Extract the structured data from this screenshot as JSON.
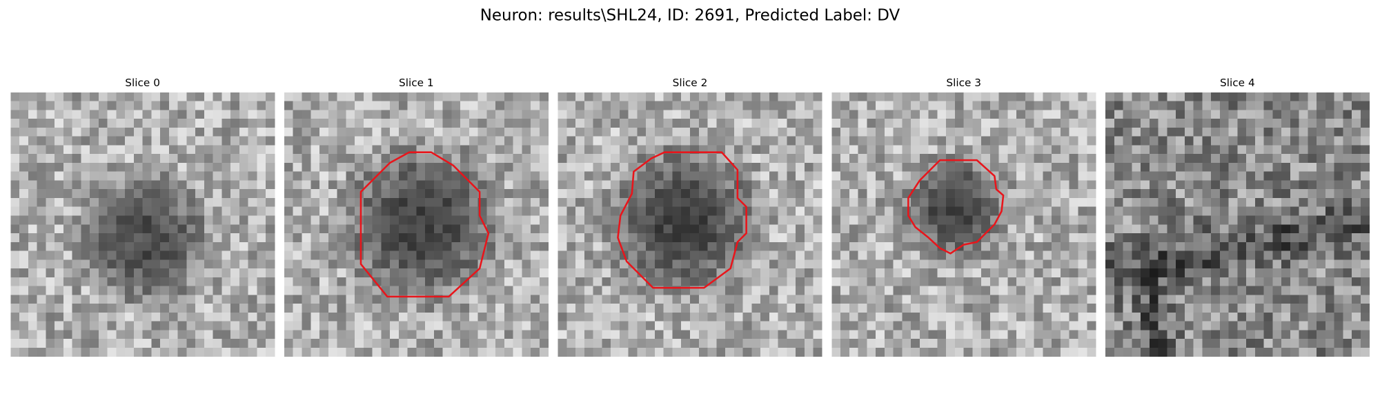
{
  "title": "Neuron: results\\SHL24, ID: 2691, Predicted Label: DV",
  "panels": [
    {
      "title": "Slice 0"
    },
    {
      "title": "Slice 1"
    },
    {
      "title": "Slice 2"
    },
    {
      "title": "Slice 3"
    },
    {
      "title": "Slice 4"
    }
  ]
}
